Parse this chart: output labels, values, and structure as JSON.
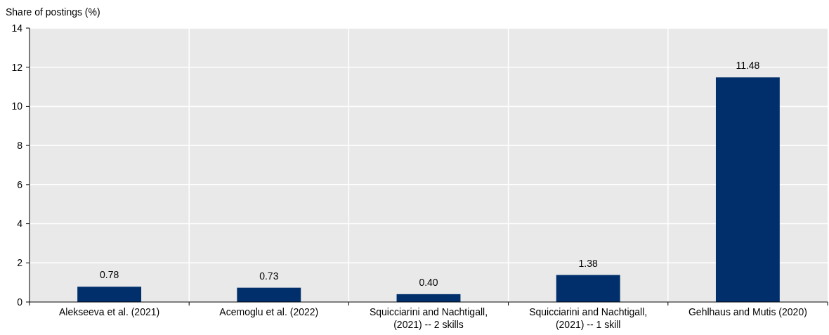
{
  "chart_data": {
    "type": "bar",
    "ylabel": "Share of postings (%)",
    "categories": [
      "Alekseeva et al. (2021)",
      "Acemoglu et al. (2022)",
      "Squicciarini and Nachtigall, (2021) -- 2 skills",
      "Squicciarini and Nachtigall, (2021) -- 1 skill",
      "Gehlhaus and Mutis (2020)"
    ],
    "values": [
      0.78,
      0.73,
      0.4,
      1.38,
      11.48
    ],
    "value_labels": [
      "0.78",
      "0.73",
      "0.40",
      "1.38",
      "11.48"
    ],
    "color": "#002f6c",
    "ylim": [
      0,
      14
    ],
    "yticks": [
      0,
      2,
      4,
      6,
      8,
      10,
      12,
      14
    ],
    "grid": true
  }
}
